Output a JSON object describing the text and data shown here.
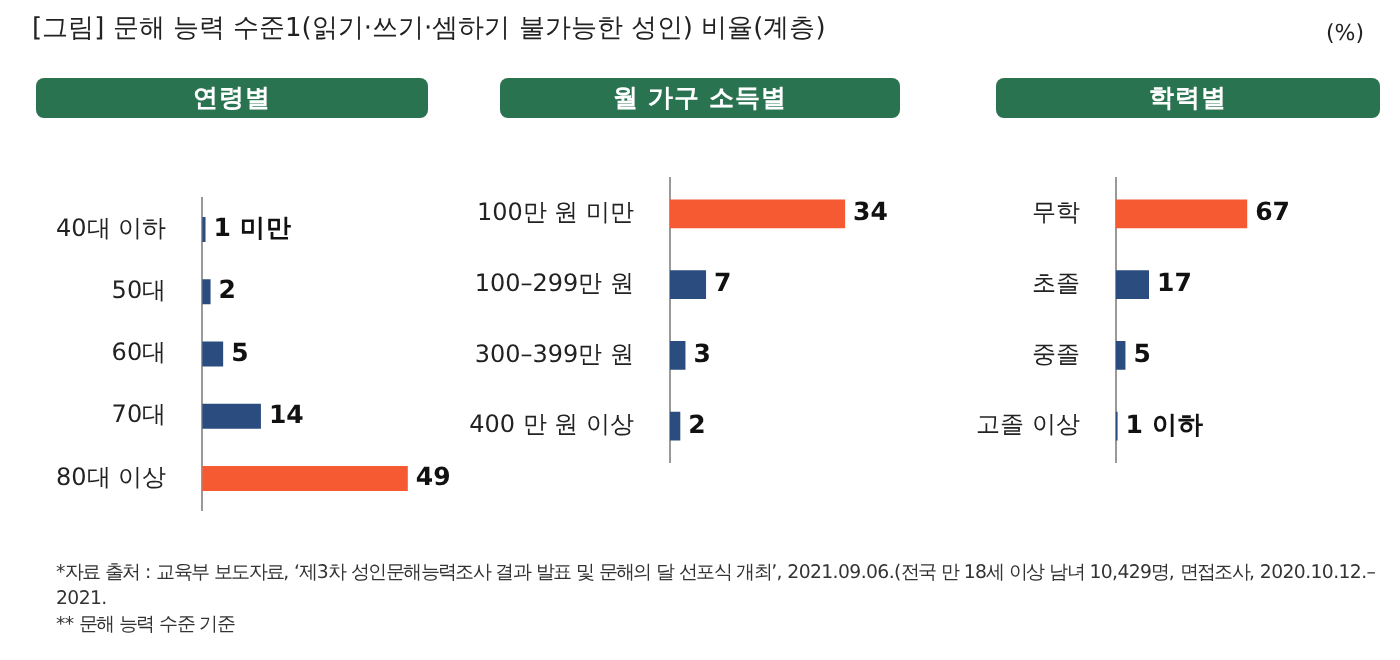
{
  "chart_data": [
    {
      "type": "bar",
      "orientation": "horizontal",
      "title": "연령별",
      "categories": [
        "40대 이하",
        "50대",
        "60대",
        "70대",
        "80대 이상"
      ],
      "values": [
        0.8,
        2,
        5,
        14,
        49
      ],
      "colors": [
        "#2b4c7e",
        "#2b4c7e",
        "#2b4c7e",
        "#2b4c7e",
        "#f55a33"
      ],
      "value_labels": [
        "1 미만",
        "2",
        "5",
        "14",
        "49"
      ],
      "tick_labels": "y",
      "grid": false,
      "legend": false,
      "annotations": [
        "[그림] 문해 능력 수준1(읽기·쓰기·셈하기 불가능한 성인) 비율(계층)",
        "(%)",
        "*자료 출처 : 교육부 보도자료, ‘제3차 성인문해능력조사 결과 발표 및 문해의 달 선포식 개최’, 2021.09.06.(전국 만 18세 이상 남녀 10,429명, 면접조사, 2020.10.12.–2021.",
        "** 문해 능력 수준 기준"
      ]
    },
    {
      "type": "bar",
      "orientation": "horizontal",
      "title": "월 가구 소득별",
      "categories": [
        "100만 원 미만",
        "100–299만 원",
        "300–399만 원",
        "400 만 원 이상"
      ],
      "values": [
        34,
        7,
        3,
        2
      ],
      "colors": [
        "#f55a33",
        "#2b4c7e",
        "#2b4c7e",
        "#2b4c7e"
      ],
      "data_labels": true,
      "tick_labels": "y",
      "grid": false,
      "legend": false
    },
    {
      "type": "bar",
      "orientation": "horizontal",
      "title": "학력별",
      "categories": [
        "무학",
        "초졸",
        "중졸",
        "고졸 이상"
      ],
      "values": [
        67,
        17,
        5,
        1
      ],
      "colors": [
        "#f55a33",
        "#2b4c7e",
        "#2b4c7e",
        "#2b4c7e"
      ],
      "value_labels": [
        "67",
        "17",
        "5",
        "1 이하"
      ],
      "tick_labels": "y",
      "grid": false,
      "legend": false
    }
  ]
}
